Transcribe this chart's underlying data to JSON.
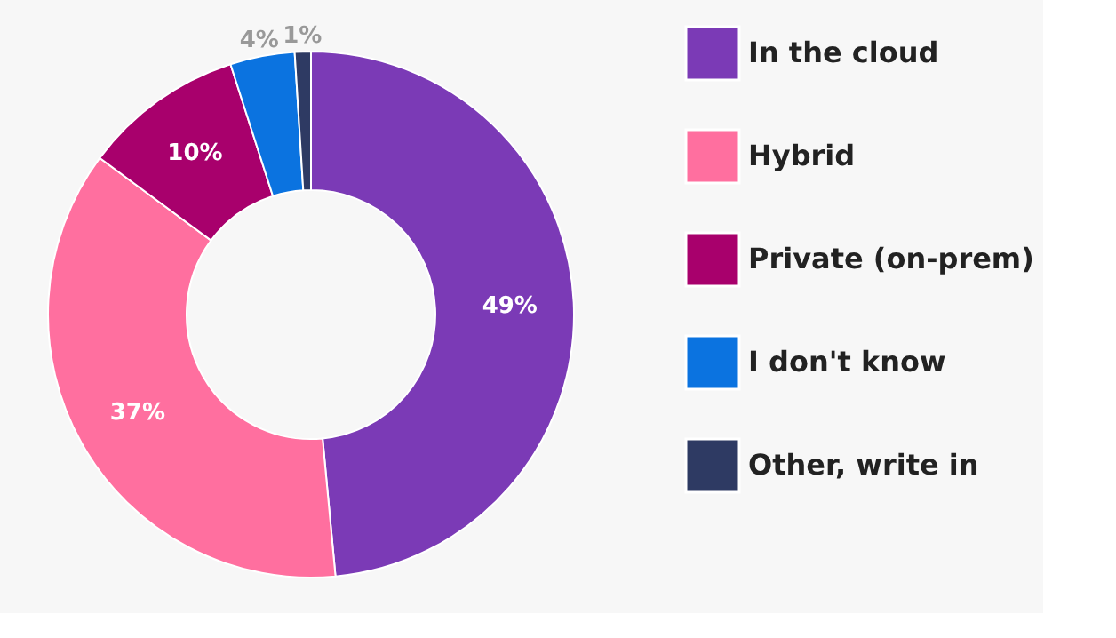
{
  "chart_data": {
    "type": "donut",
    "categories": [
      "In the cloud",
      "Hybrid",
      "Private (on-prem)",
      "I don't know",
      "Other, write in"
    ],
    "values": [
      49,
      37,
      10,
      4,
      1
    ],
    "colors": [
      "#7b3ab6",
      "#ff6f9f",
      "#a8006c",
      "#0b73e0",
      "#2e3a63"
    ],
    "value_labels": [
      "49%",
      "37%",
      "10%",
      "4%",
      "1%"
    ],
    "legend": "right"
  }
}
